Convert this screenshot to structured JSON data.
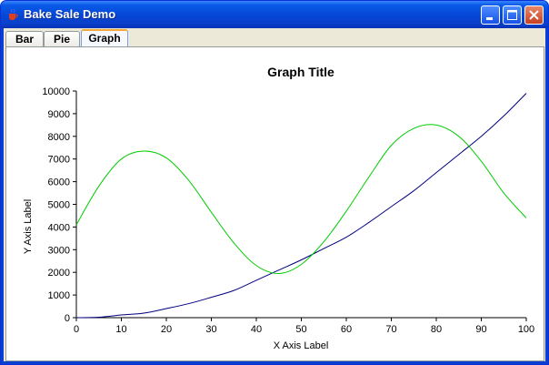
{
  "window": {
    "title": "Bake Sale Demo",
    "icon": "java-cup-icon",
    "buttons": [
      "minimize",
      "maximize",
      "close"
    ]
  },
  "tabs": [
    {
      "label": "Bar",
      "active": false
    },
    {
      "label": "Pie",
      "active": false
    },
    {
      "label": "Graph",
      "active": true
    }
  ],
  "chart_data": {
    "type": "line",
    "title": "Graph Title",
    "xlabel": "X Axis Label",
    "ylabel": "Y Axis Label",
    "xlim": [
      0,
      100
    ],
    "ylim": [
      0,
      10000
    ],
    "xticks": [
      0,
      10,
      20,
      30,
      40,
      50,
      60,
      70,
      80,
      90,
      100
    ],
    "yticks": [
      0,
      1000,
      2000,
      3000,
      4000,
      5000,
      6000,
      7000,
      8000,
      9000,
      10000
    ],
    "grid": false,
    "series": [
      {
        "color": "#000080",
        "x": [
          0,
          5,
          10,
          15,
          20,
          25,
          30,
          35,
          40,
          45,
          50,
          55,
          60,
          65,
          70,
          75,
          80,
          85,
          90,
          95,
          100
        ],
        "y": [
          0,
          20,
          120,
          200,
          400,
          620,
          900,
          1200,
          1650,
          2100,
          2550,
          3050,
          3550,
          4200,
          4900,
          5600,
          6400,
          7200,
          8000,
          8900,
          9900
        ]
      },
      {
        "color": "#00cc00",
        "x": [
          0,
          5,
          10,
          15,
          20,
          25,
          30,
          35,
          40,
          45,
          50,
          55,
          60,
          65,
          70,
          75,
          80,
          85,
          90,
          95,
          100
        ],
        "y": [
          4100,
          5800,
          7000,
          7350,
          7050,
          6050,
          4650,
          3300,
          2300,
          1950,
          2350,
          3350,
          4700,
          6200,
          7600,
          8350,
          8500,
          8000,
          6900,
          5500,
          4400
        ]
      }
    ]
  }
}
